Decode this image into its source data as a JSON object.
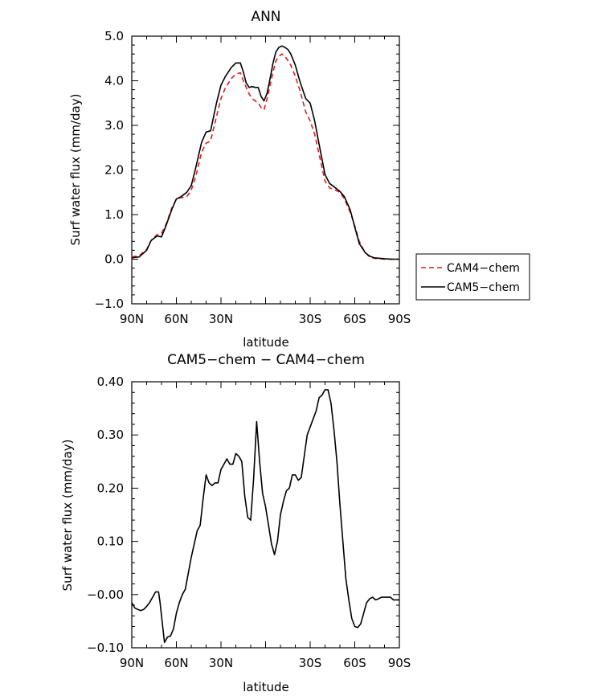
{
  "chart_data": [
    {
      "type": "line",
      "title": "ANN",
      "xlabel": "latitude",
      "ylabel": "Surf water flux (mm/day)",
      "xlim": [
        90,
        -90
      ],
      "ylim": [
        -1.0,
        5.0
      ],
      "x_ticks": [
        90,
        60,
        30,
        0,
        -30,
        -60,
        -90
      ],
      "x_tick_labels": [
        "90N",
        "60N",
        "30N",
        "",
        "30S",
        "60S",
        "90S"
      ],
      "y_ticks": [
        -1.0,
        0.0,
        1.0,
        2.0,
        3.0,
        4.0,
        5.0
      ],
      "y_tick_labels": [
        "−1.0",
        "0.0",
        "1.0",
        "2.0",
        "3.0",
        "4.0",
        "5.0"
      ],
      "legend_position": "right",
      "series": [
        {
          "name": "CAM4−chem",
          "color": "#e41a1c",
          "dash": "dashed",
          "x": [
            90,
            85,
            80,
            77,
            73,
            70,
            67,
            63,
            60,
            57,
            53,
            50,
            47,
            43,
            40,
            37,
            33,
            30,
            27,
            23,
            20,
            17,
            15,
            13,
            11,
            9,
            7,
            5,
            3,
            1,
            -1,
            -3,
            -5,
            -7,
            -9,
            -11,
            -13,
            -15,
            -17,
            -20,
            -23,
            -27,
            -30,
            -33,
            -37,
            -40,
            -43,
            -47,
            -50,
            -53,
            -57,
            -60,
            -63,
            -67,
            -70,
            -73,
            -77,
            -80,
            -85,
            -90
          ],
          "y": [
            0.05,
            0.08,
            0.22,
            0.42,
            0.55,
            0.58,
            0.78,
            1.15,
            1.35,
            1.38,
            1.4,
            1.55,
            1.85,
            2.4,
            2.6,
            2.65,
            3.2,
            3.6,
            3.85,
            4.05,
            4.15,
            4.18,
            4.0,
            3.85,
            3.7,
            3.6,
            3.55,
            3.5,
            3.4,
            3.35,
            3.6,
            3.9,
            4.2,
            4.45,
            4.55,
            4.6,
            4.55,
            4.45,
            4.35,
            4.1,
            3.8,
            3.3,
            3.1,
            2.8,
            2.2,
            1.75,
            1.6,
            1.55,
            1.5,
            1.35,
            1.05,
            0.75,
            0.4,
            0.15,
            0.05,
            0.02,
            0.01,
            0.0,
            0.0,
            0.0
          ]
        },
        {
          "name": "CAM5−chem",
          "color": "#000000",
          "dash": "solid",
          "x": [
            90,
            85,
            80,
            77,
            73,
            70,
            67,
            63,
            60,
            57,
            53,
            50,
            47,
            43,
            40,
            37,
            33,
            30,
            27,
            23,
            20,
            17,
            15,
            13,
            11,
            9,
            7,
            5,
            3,
            1,
            -1,
            -3,
            -5,
            -7,
            -9,
            -11,
            -13,
            -15,
            -17,
            -20,
            -23,
            -27,
            -30,
            -33,
            -37,
            -40,
            -43,
            -47,
            -50,
            -53,
            -57,
            -60,
            -63,
            -67,
            -70,
            -73,
            -77,
            -80,
            -85,
            -90
          ],
          "y": [
            0.03,
            0.05,
            0.2,
            0.42,
            0.52,
            0.5,
            0.75,
            1.12,
            1.35,
            1.4,
            1.5,
            1.65,
            2.05,
            2.62,
            2.85,
            2.88,
            3.5,
            3.9,
            4.1,
            4.3,
            4.4,
            4.4,
            4.2,
            3.95,
            3.85,
            3.87,
            3.85,
            3.85,
            3.65,
            3.55,
            3.72,
            4.05,
            4.4,
            4.65,
            4.75,
            4.78,
            4.75,
            4.7,
            4.6,
            4.35,
            4.0,
            3.6,
            3.5,
            3.1,
            2.4,
            1.9,
            1.7,
            1.6,
            1.52,
            1.4,
            1.1,
            0.72,
            0.35,
            0.15,
            0.07,
            0.03,
            0.02,
            0.01,
            0.0,
            0.0
          ]
        }
      ]
    },
    {
      "type": "line",
      "title": "CAM5−chem − CAM4−chem",
      "xlabel": "latitude",
      "ylabel": "Surf water flux (mm/day)",
      "xlim": [
        90,
        -90
      ],
      "ylim": [
        -0.1,
        0.4
      ],
      "x_ticks": [
        90,
        60,
        30,
        0,
        -30,
        -60,
        -90
      ],
      "x_tick_labels": [
        "90N",
        "60N",
        "30N",
        "",
        "30S",
        "60S",
        "90S"
      ],
      "y_ticks": [
        -0.1,
        0.0,
        0.1,
        0.2,
        0.3,
        0.4
      ],
      "y_tick_labels": [
        "−0.10",
        "−0.00",
        "0.10",
        "0.20",
        "0.30",
        "0.40"
      ],
      "series": [
        {
          "color": "#000000",
          "dash": "solid",
          "x": [
            90,
            88,
            86,
            84,
            82,
            80,
            78,
            76,
            74,
            72,
            71,
            70,
            68,
            66,
            64,
            62,
            60,
            58,
            56,
            54,
            52,
            50,
            48,
            46,
            44,
            42,
            40,
            38,
            36,
            34,
            32,
            30,
            28,
            26,
            24,
            22,
            20,
            18,
            16,
            14,
            12,
            10,
            8,
            6,
            4,
            2,
            0,
            -2,
            -4,
            -6,
            -8,
            -10,
            -12,
            -14,
            -16,
            -18,
            -20,
            -22,
            -24,
            -26,
            -28,
            -30,
            -32,
            -34,
            -36,
            -38,
            -40,
            -42,
            -44,
            -46,
            -48,
            -50,
            -52,
            -54,
            -56,
            -58,
            -60,
            -62,
            -64,
            -66,
            -68,
            -70,
            -72,
            -74,
            -76,
            -78,
            -80,
            -82,
            -84,
            -86,
            -88,
            -90
          ],
          "y": [
            -0.015,
            -0.025,
            -0.028,
            -0.03,
            -0.028,
            -0.022,
            -0.015,
            -0.005,
            0.005,
            0.005,
            -0.015,
            -0.04,
            -0.09,
            -0.08,
            -0.078,
            -0.065,
            -0.035,
            -0.015,
            0.0,
            0.01,
            0.04,
            0.07,
            0.095,
            0.12,
            0.13,
            0.18,
            0.225,
            0.21,
            0.205,
            0.21,
            0.21,
            0.235,
            0.245,
            0.255,
            0.245,
            0.245,
            0.265,
            0.26,
            0.25,
            0.185,
            0.145,
            0.14,
            0.22,
            0.325,
            0.25,
            0.19,
            0.165,
            0.13,
            0.095,
            0.075,
            0.1,
            0.15,
            0.175,
            0.195,
            0.2,
            0.225,
            0.225,
            0.215,
            0.22,
            0.26,
            0.3,
            0.315,
            0.33,
            0.345,
            0.37,
            0.375,
            0.385,
            0.385,
            0.36,
            0.31,
            0.25,
            0.17,
            0.1,
            0.03,
            -0.01,
            -0.045,
            -0.06,
            -0.062,
            -0.055,
            -0.035,
            -0.015,
            -0.008,
            -0.005,
            -0.01,
            -0.008,
            -0.005,
            -0.005,
            -0.005,
            -0.005,
            -0.01,
            -0.01,
            -0.01
          ]
        }
      ]
    }
  ]
}
